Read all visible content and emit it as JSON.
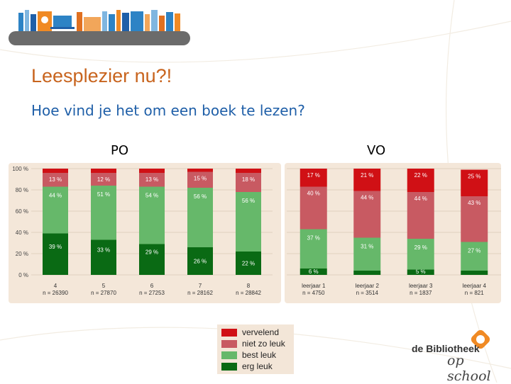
{
  "slide": {
    "title": "Leesplezier nu?!",
    "subtitle": "Hoe vind je het om een boek te lezen?"
  },
  "colors": {
    "vervelend": "#d01015",
    "niet_zo_leuk": "#c85a62",
    "best_leuk": "#66b86a",
    "erg_leuk": "#0a6a14",
    "panel_bg": "#f4e7d9",
    "title": "#c8641e",
    "subtitle": "#1f5fa8"
  },
  "legend": {
    "items": [
      {
        "label": "vervelend",
        "color": "#d01015"
      },
      {
        "label": "niet zo leuk",
        "color": "#c85a62"
      },
      {
        "label": "best leuk",
        "color": "#66b86a"
      },
      {
        "label": "erg leuk",
        "color": "#0a6a14"
      }
    ]
  },
  "logo": {
    "line1": "de Bibliotheek",
    "line2": "op school"
  },
  "chart_data": [
    {
      "type": "bar",
      "stacked": true,
      "title": "PO",
      "yticks": [
        "0 %",
        "20 %",
        "40 %",
        "60 %",
        "80 %",
        "100 %"
      ],
      "ylim": [
        0,
        100
      ],
      "categories": [
        "4",
        "5",
        "6",
        "7",
        "8"
      ],
      "sublabels": [
        "n = 26390",
        "n = 27870",
        "n = 27253",
        "n = 28162",
        "n = 28842"
      ],
      "series": [
        {
          "name": "erg leuk",
          "values": [
            39,
            33,
            29,
            26,
            22
          ],
          "labels": [
            "39 %",
            "33 %",
            "29 %",
            "26 %",
            "22 %"
          ]
        },
        {
          "name": "best leuk",
          "values": [
            44,
            51,
            54,
            56,
            56
          ],
          "labels": [
            "44 %",
            "51 %",
            "54 %",
            "56 %",
            "56 %"
          ]
        },
        {
          "name": "niet zo leuk",
          "values": [
            13,
            12,
            13,
            15,
            18
          ],
          "labels": [
            "13 %",
            "12 %",
            "13 %",
            "15 %",
            "18 %"
          ]
        },
        {
          "name": "vervelend",
          "values": [
            4,
            4,
            4,
            3,
            4
          ],
          "labels": [
            "",
            "",
            "",
            "",
            ""
          ]
        }
      ]
    },
    {
      "type": "bar",
      "stacked": true,
      "title": "VO",
      "ylim": [
        0,
        100
      ],
      "categories": [
        "leerjaar 1",
        "leerjaar 2",
        "leerjaar 3",
        "leerjaar 4"
      ],
      "sublabels": [
        "n = 4750",
        "n = 3514",
        "n = 1837",
        "n = 821"
      ],
      "series": [
        {
          "name": "erg leuk",
          "values": [
            6,
            4,
            5,
            4
          ],
          "labels": [
            "6 %",
            "",
            "5 %",
            ""
          ]
        },
        {
          "name": "best leuk",
          "values": [
            37,
            31,
            29,
            27
          ],
          "labels": [
            "37 %",
            "31 %",
            "29 %",
            "27 %"
          ]
        },
        {
          "name": "niet zo leuk",
          "values": [
            40,
            44,
            44,
            43
          ],
          "labels": [
            "40 %",
            "44 %",
            "44 %",
            "43 %"
          ]
        },
        {
          "name": "vervelend",
          "values": [
            17,
            21,
            22,
            25
          ],
          "labels": [
            "17 %",
            "21 %",
            "22 %",
            "25 %"
          ]
        }
      ]
    }
  ]
}
